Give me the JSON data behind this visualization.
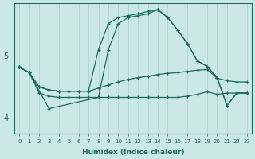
{
  "xlabel": "Humidex (Indice chaleur)",
  "xlim": [
    -0.5,
    23.5
  ],
  "ylim": [
    3.75,
    5.85
  ],
  "yticks": [
    4,
    5
  ],
  "background_color": "#cce8e4",
  "grid_color": "#aacfcb",
  "line_color": "#1a6b5a",
  "series1_x": [
    0,
    1,
    2,
    3,
    4,
    5,
    6,
    7,
    8,
    9,
    10,
    11,
    12,
    13,
    14,
    15,
    16,
    17,
    18,
    19,
    20,
    21,
    22,
    23
  ],
  "series1_y": [
    4.82,
    4.73,
    4.4,
    4.35,
    4.33,
    4.33,
    4.33,
    4.33,
    4.33,
    4.33,
    4.33,
    4.33,
    4.33,
    4.33,
    4.33,
    4.33,
    4.33,
    4.35,
    4.38,
    4.42,
    4.38,
    4.4,
    4.4,
    4.4
  ],
  "series2_x": [
    0,
    1,
    2,
    3,
    4,
    5,
    6,
    7,
    8,
    9,
    10,
    11,
    12,
    13,
    14,
    15,
    16,
    17,
    18,
    19,
    20,
    21,
    22,
    23
  ],
  "series2_y": [
    4.82,
    4.73,
    4.5,
    4.45,
    4.43,
    4.43,
    4.43,
    4.43,
    4.48,
    4.53,
    4.58,
    4.62,
    4.65,
    4.67,
    4.7,
    4.72,
    4.73,
    4.75,
    4.77,
    4.78,
    4.64,
    4.6,
    4.58,
    4.58
  ],
  "series3_x": [
    0,
    1,
    2,
    3,
    4,
    5,
    6,
    7,
    8,
    9,
    10,
    11,
    12,
    13,
    14,
    15,
    16,
    17,
    18,
    19,
    20,
    21,
    22,
    23
  ],
  "series3_y": [
    4.82,
    4.73,
    4.5,
    4.45,
    4.43,
    4.43,
    4.43,
    4.43,
    5.1,
    5.52,
    5.62,
    5.65,
    5.68,
    5.72,
    5.75,
    5.62,
    5.42,
    5.2,
    4.92,
    4.83,
    4.65,
    4.2,
    4.4,
    4.4
  ],
  "series4_x": [
    0,
    1,
    3,
    8,
    9,
    10,
    11,
    12,
    13,
    14,
    14,
    15,
    16,
    17,
    18,
    19,
    20,
    21,
    22,
    23
  ],
  "series4_y": [
    4.82,
    4.73,
    4.15,
    4.33,
    5.1,
    5.52,
    5.62,
    5.65,
    5.68,
    5.75,
    5.75,
    5.62,
    5.42,
    5.2,
    4.92,
    4.83,
    4.65,
    4.2,
    4.4,
    4.4
  ]
}
